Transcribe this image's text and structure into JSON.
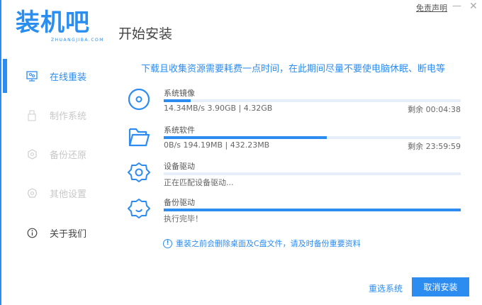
{
  "window": {
    "logo_text": "装机吧",
    "logo_sub": "ZHUANGJIBA.COM",
    "title": "开始安装",
    "disclaimer": "免责声明",
    "minimize": "—",
    "close": "✕"
  },
  "sidebar": {
    "items": [
      {
        "label": "在线重装",
        "icon": "monitor-icon",
        "active": true
      },
      {
        "label": "制作系统",
        "icon": "usb-icon",
        "active": false
      },
      {
        "label": "备份还原",
        "icon": "backup-icon",
        "active": false
      },
      {
        "label": "其他设置",
        "icon": "gear-icon",
        "active": false
      },
      {
        "label": "关于我们",
        "icon": "info-icon",
        "active": false
      }
    ]
  },
  "main": {
    "notice": "下载且收集资源需要耗费一点时间，在此期间尽量不要使电脑休眠、断电等",
    "steps": [
      {
        "label": "系统镜像",
        "icon": "disc-icon",
        "progress_percent": 9,
        "info": "14.34MB/s 3.90GB | 4.32GB",
        "remaining": "剩余 00:04:38"
      },
      {
        "label": "系统软件",
        "icon": "folder-icon",
        "progress_percent": 55,
        "info": "0B/s 194.19MB | 432.23MB",
        "remaining": "剩余 23:59:59"
      },
      {
        "label": "设备驱动",
        "icon": "gear-icon",
        "progress_percent": 0,
        "info": "正在匹配设备驱动..."
      },
      {
        "label": "备份驱动",
        "icon": "gear-refresh-icon",
        "progress_percent": 100,
        "info": "执行完毕！"
      }
    ],
    "warning": "重装之前会删除桌面及C盘文件，请及时备份重要资料",
    "warning_icon": "!",
    "reselect_label": "重选系统",
    "cancel_label": "取消安装"
  },
  "colors": {
    "accent": "#2d8cf0",
    "track": "#e6eef9"
  }
}
